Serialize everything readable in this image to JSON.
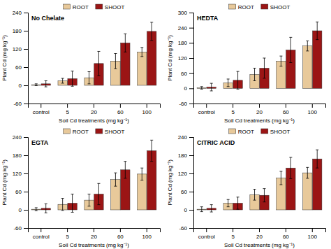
{
  "chart_data": [
    {
      "type": "bar",
      "title": "No Chelate",
      "xlabel": "Soil Cd treatments (mg kg⁻¹)",
      "ylabel": "Plant Cd (mg kg⁻¹)",
      "categories": [
        "control",
        "5",
        "20",
        "60",
        "100"
      ],
      "series": [
        {
          "name": "ROOT",
          "color": "#E8C99A",
          "values": [
            2,
            15,
            25,
            80,
            110
          ],
          "errors": [
            3,
            8,
            20,
            25,
            15
          ]
        },
        {
          "name": "SHOOT",
          "color": "#9B1515",
          "values": [
            5,
            22,
            72,
            140,
            178
          ],
          "errors": [
            10,
            25,
            40,
            30,
            30
          ]
        }
      ],
      "ylim": [
        -60,
        240
      ],
      "yticks": [
        -60,
        0,
        60,
        120,
        180,
        240
      ],
      "legend": "top"
    },
    {
      "type": "bar",
      "title": "HEDTA",
      "xlabel": "Soil Cd treatments (mg kg⁻¹)",
      "ylabel": "Plant Cd (mg kg⁻¹)",
      "categories": [
        "control",
        "5",
        "20",
        "60",
        "100"
      ],
      "series": [
        {
          "name": "ROOT",
          "color": "#E8C99A",
          "values": [
            2,
            22,
            55,
            108,
            168
          ],
          "errors": [
            5,
            15,
            25,
            20,
            20
          ]
        },
        {
          "name": "SHOOT",
          "color": "#9B1515",
          "values": [
            5,
            32,
            80,
            152,
            228
          ],
          "errors": [
            15,
            35,
            40,
            50,
            35
          ]
        }
      ],
      "ylim": [
        -60,
        300
      ],
      "yticks": [
        -60,
        0,
        60,
        120,
        180,
        240,
        300
      ],
      "legend": "top"
    },
    {
      "type": "bar",
      "title": "EGTA",
      "xlabel": "Soil Cd treatments (mg kg⁻¹)",
      "ylabel": "Plant Cd (mg kg⁻¹)",
      "categories": [
        "control",
        "5",
        "20",
        "60",
        "100"
      ],
      "series": [
        {
          "name": "ROOT",
          "color": "#E8C99A",
          "values": [
            2,
            18,
            32,
            100,
            118
          ],
          "errors": [
            5,
            20,
            20,
            22,
            20
          ]
        },
        {
          "name": "SHOOT",
          "color": "#9B1515",
          "values": [
            5,
            22,
            52,
            132,
            195
          ],
          "errors": [
            15,
            30,
            35,
            28,
            35
          ]
        }
      ],
      "ylim": [
        -60,
        240
      ],
      "yticks": [
        -60,
        0,
        60,
        120,
        180,
        240
      ],
      "legend": "top"
    },
    {
      "type": "bar",
      "title": "CITRIC ACID",
      "xlabel": "Soil Cd treatments (mg kg⁻¹)",
      "ylabel": "Plant Cd (mg kg⁻¹)",
      "categories": [
        "control",
        "5",
        "20",
        "60",
        "100"
      ],
      "series": [
        {
          "name": "ROOT",
          "color": "#E8C99A",
          "values": [
            2,
            22,
            50,
            105,
            122
          ],
          "errors": [
            8,
            12,
            18,
            22,
            18
          ]
        },
        {
          "name": "SHOOT",
          "color": "#9B1515",
          "values": [
            5,
            22,
            48,
            138,
            168
          ],
          "errors": [
            12,
            20,
            22,
            35,
            30
          ]
        }
      ],
      "ylim": [
        -60,
        240
      ],
      "yticks": [
        -60,
        0,
        60,
        120,
        180,
        240
      ],
      "legend": "top"
    }
  ]
}
